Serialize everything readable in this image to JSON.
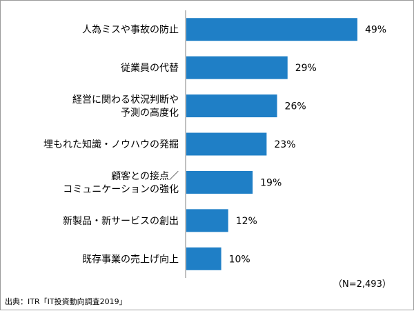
{
  "chart_data": {
    "type": "bar",
    "orientation": "horizontal",
    "categories": [
      [
        "人為ミスや事故の防止"
      ],
      [
        "従業員の代替"
      ],
      [
        "経営に関わる状況判断や",
        "予測の高度化"
      ],
      [
        "埋もれた知識・ノウハウの発掘"
      ],
      [
        "顧客との接点／",
        "コミュニケーションの強化"
      ],
      [
        "新製品・新サービスの創出"
      ],
      [
        "既存事業の売上げ向上"
      ]
    ],
    "values": [
      49,
      29,
      26,
      23,
      19,
      12,
      10
    ],
    "value_labels": [
      "49%",
      "29%",
      "26%",
      "23%",
      "19%",
      "12%",
      "10%"
    ],
    "xlim": [
      0,
      60
    ],
    "bar_color": "#1f7fc6",
    "axis_color": "#808080",
    "grid": false,
    "legend": "none"
  },
  "notes": {
    "sample_size": "（N=2,493）",
    "source": "出典：ITR「IT投資動向調査2019」"
  }
}
